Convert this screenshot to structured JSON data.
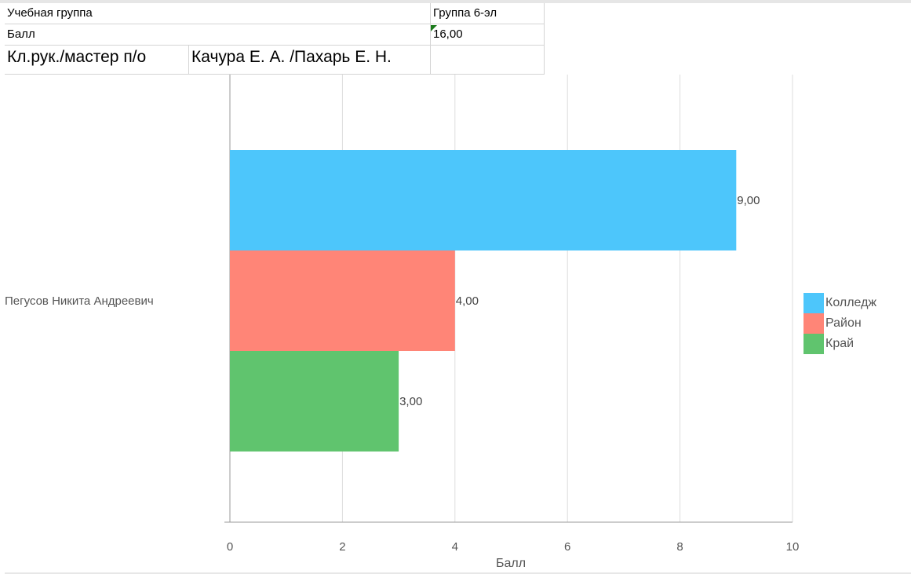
{
  "sheet": {
    "row1_label": "Учебная группа",
    "row1_value": "Группа 6-эл",
    "row2_label": "Балл",
    "row2_value": "16,00",
    "row3_label": "Кл.рук./мастер п/о",
    "row3_value": "Качура Е. А. /Пахарь Е. Н."
  },
  "chart_data": {
    "type": "bar",
    "orientation": "horizontal",
    "categories": [
      "Пегусов Никита Андреевич"
    ],
    "series": [
      {
        "name": "Колледж",
        "values": [
          9.0
        ],
        "label": "9,00",
        "color": "#4dc6fb"
      },
      {
        "name": "Район",
        "values": [
          4.0
        ],
        "label": "4,00",
        "color": "#ff8577"
      },
      {
        "name": "Край",
        "values": [
          3.0
        ],
        "label": "3,00",
        "color": "#60c46e"
      }
    ],
    "xlabel": "Балл",
    "xlim": [
      0,
      10
    ],
    "xticks": [
      "0",
      "2",
      "4",
      "6",
      "8",
      "10"
    ],
    "grid": "vertical",
    "legend_position": "right"
  }
}
